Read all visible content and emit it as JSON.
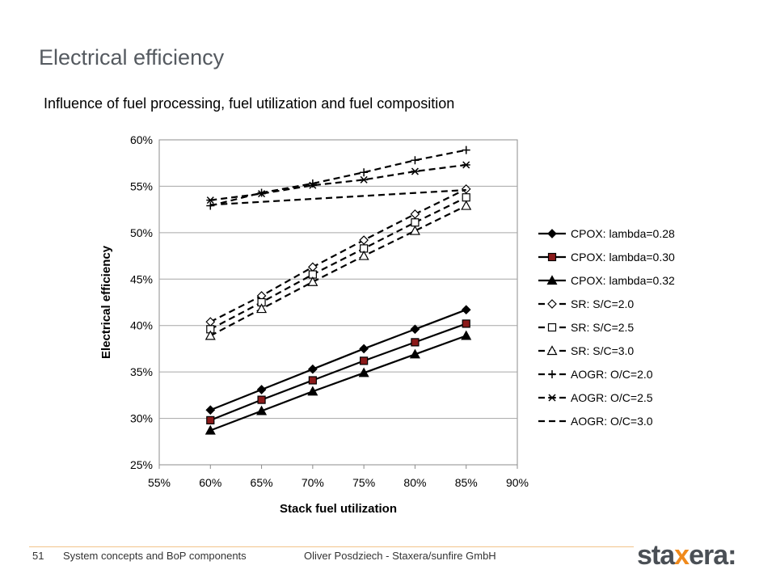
{
  "slide": {
    "title": "Electrical efficiency",
    "subtitle": "Influence of fuel processing, fuel utilization and fuel composition"
  },
  "footer": {
    "page_number": "51",
    "topic": "System concepts and BoP components",
    "author": "Oliver Posdziech - Staxera/sunfire GmbH",
    "logo_pre": "sta",
    "logo_x": "x",
    "logo_post": "era:"
  },
  "chart_data": {
    "type": "line",
    "title": "",
    "xlabel": "Stack fuel utilization",
    "ylabel": "Electrical efficiency",
    "xlim": [
      0.55,
      0.9
    ],
    "ylim": [
      0.25,
      0.6
    ],
    "xticks": [
      "55%",
      "60%",
      "65%",
      "70%",
      "75%",
      "80%",
      "85%",
      "90%"
    ],
    "yticks": [
      "25%",
      "30%",
      "35%",
      "40%",
      "45%",
      "50%",
      "55%",
      "60%"
    ],
    "grid": "horizontal",
    "legend": "right",
    "x": [
      0.6,
      0.65,
      0.7,
      0.75,
      0.8,
      0.85
    ],
    "series": [
      {
        "name": "CPOX: lambda=0.28",
        "marker": "diamond-filled",
        "dash": "solid",
        "values": [
          0.309,
          0.331,
          0.353,
          0.375,
          0.396,
          0.417
        ]
      },
      {
        "name": "CPOX: lambda=0.30",
        "marker": "square-filled",
        "dash": "solid",
        "values": [
          0.298,
          0.32,
          0.341,
          0.362,
          0.382,
          0.402
        ]
      },
      {
        "name": "CPOX: lambda=0.32",
        "marker": "triangle-filled",
        "dash": "solid",
        "values": [
          0.287,
          0.308,
          0.329,
          0.349,
          0.369,
          0.389
        ]
      },
      {
        "name": "SR: S/C=2.0",
        "marker": "diamond-open",
        "dash": "dashed",
        "values": [
          0.404,
          0.432,
          0.463,
          0.492,
          0.52,
          0.547
        ]
      },
      {
        "name": "SR: S/C=2.5",
        "marker": "square-open",
        "dash": "dashed",
        "values": [
          0.396,
          0.425,
          0.455,
          0.483,
          0.511,
          0.538
        ]
      },
      {
        "name": "SR: S/C=3.0",
        "marker": "triangle-open",
        "dash": "dashed",
        "values": [
          0.389,
          0.418,
          0.447,
          0.475,
          0.502,
          0.529
        ]
      },
      {
        "name": "AOGR: O/C=2.0",
        "marker": "plus",
        "dash": "dashed",
        "values": [
          0.529,
          0.543,
          0.553,
          0.565,
          0.578,
          0.589
        ]
      },
      {
        "name": "AOGR: O/C=2.5",
        "marker": "asterisk",
        "dash": "dashed",
        "values": [
          0.535,
          0.542,
          0.551,
          0.557,
          0.566,
          0.573
        ]
      },
      {
        "name": "AOGR: O/C=3.0",
        "marker": "none",
        "dash": "dashed",
        "x": [
          0.6,
          0.85
        ],
        "values": [
          0.53,
          0.546
        ]
      }
    ]
  }
}
